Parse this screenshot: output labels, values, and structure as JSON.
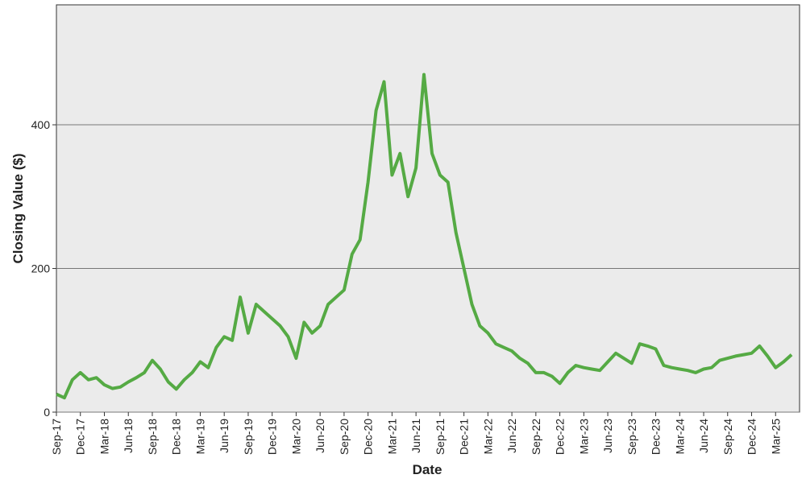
{
  "chart_data": {
    "type": "line",
    "xlabel": "Date",
    "ylabel": "Closing Value ($)",
    "x": [
      "2017-09",
      "2017-10",
      "2017-11",
      "2017-12",
      "2018-01",
      "2018-02",
      "2018-03",
      "2018-04",
      "2018-05",
      "2018-06",
      "2018-07",
      "2018-08",
      "2018-09",
      "2018-10",
      "2018-11",
      "2018-12",
      "2019-01",
      "2019-02",
      "2019-03",
      "2019-04",
      "2019-05",
      "2019-06",
      "2019-07",
      "2019-08",
      "2019-09",
      "2019-10",
      "2019-11",
      "2019-12",
      "2020-01",
      "2020-02",
      "2020-03",
      "2020-04",
      "2020-05",
      "2020-06",
      "2020-07",
      "2020-08",
      "2020-09",
      "2020-10",
      "2020-11",
      "2020-12",
      "2021-01",
      "2021-02",
      "2021-03",
      "2021-04",
      "2021-05",
      "2021-06",
      "2021-07",
      "2021-08",
      "2021-09",
      "2021-10",
      "2021-11",
      "2021-12",
      "2022-01",
      "2022-02",
      "2022-03",
      "2022-04",
      "2022-05",
      "2022-06",
      "2022-07",
      "2022-08",
      "2022-09",
      "2022-10",
      "2022-11",
      "2022-12",
      "2023-01",
      "2023-02",
      "2023-03",
      "2023-04",
      "2023-05",
      "2023-06",
      "2023-07",
      "2023-08",
      "2023-09",
      "2023-10",
      "2023-11",
      "2023-12",
      "2024-01",
      "2024-02",
      "2024-03",
      "2024-04",
      "2024-05",
      "2024-06",
      "2024-07",
      "2024-08",
      "2024-09",
      "2024-10",
      "2024-11",
      "2024-12",
      "2025-01",
      "2025-02",
      "2025-03",
      "2025-04",
      "2025-05"
    ],
    "series": [
      {
        "name": "Closing Value",
        "color": "#55aa44",
        "values": [
          25,
          20,
          45,
          55,
          45,
          48,
          38,
          33,
          35,
          42,
          48,
          55,
          72,
          60,
          42,
          32,
          45,
          55,
          70,
          62,
          90,
          105,
          100,
          160,
          110,
          150,
          140,
          130,
          120,
          105,
          75,
          125,
          110,
          120,
          150,
          160,
          170,
          220,
          240,
          320,
          420,
          460,
          330,
          360,
          300,
          340,
          470,
          360,
          330,
          320,
          250,
          200,
          150,
          120,
          110,
          95,
          90,
          85,
          75,
          68,
          55,
          55,
          50,
          40,
          55,
          65,
          62,
          60,
          58,
          70,
          82,
          75,
          68,
          95,
          92,
          88,
          65,
          62,
          60,
          58,
          55,
          60,
          62,
          72,
          75,
          78,
          80,
          82,
          92,
          78,
          62,
          70,
          80
        ]
      }
    ],
    "xlim": [
      "2017-09",
      "2025-06"
    ],
    "xticks": [
      {
        "value": "2017-09",
        "label": "Sep-17"
      },
      {
        "value": "2017-12",
        "label": "Dec-17"
      },
      {
        "value": "2018-03",
        "label": "Mar-18"
      },
      {
        "value": "2018-06",
        "label": "Jun-18"
      },
      {
        "value": "2018-09",
        "label": "Sep-18"
      },
      {
        "value": "2018-12",
        "label": "Dec-18"
      },
      {
        "value": "2019-03",
        "label": "Mar-19"
      },
      {
        "value": "2019-06",
        "label": "Jun-19"
      },
      {
        "value": "2019-09",
        "label": "Sep-19"
      },
      {
        "value": "2019-12",
        "label": "Dec-19"
      },
      {
        "value": "2020-03",
        "label": "Mar-20"
      },
      {
        "value": "2020-06",
        "label": "Jun-20"
      },
      {
        "value": "2020-09",
        "label": "Sep-20"
      },
      {
        "value": "2020-12",
        "label": "Dec-20"
      },
      {
        "value": "2021-03",
        "label": "Mar-21"
      },
      {
        "value": "2021-06",
        "label": "Jun-21"
      },
      {
        "value": "2021-09",
        "label": "Sep-21"
      },
      {
        "value": "2021-12",
        "label": "Dec-21"
      },
      {
        "value": "2022-03",
        "label": "Mar-22"
      },
      {
        "value": "2022-06",
        "label": "Jun-22"
      },
      {
        "value": "2022-09",
        "label": "Sep-22"
      },
      {
        "value": "2022-12",
        "label": "Dec-22"
      },
      {
        "value": "2023-03",
        "label": "Mar-23"
      },
      {
        "value": "2023-06",
        "label": "Jun-23"
      },
      {
        "value": "2023-09",
        "label": "Sep-23"
      },
      {
        "value": "2023-12",
        "label": "Dec-23"
      },
      {
        "value": "2024-03",
        "label": "Mar-24"
      },
      {
        "value": "2024-06",
        "label": "Jun-24"
      },
      {
        "value": "2024-09",
        "label": "Sep-24"
      },
      {
        "value": "2024-12",
        "label": "Dec-24"
      },
      {
        "value": "2025-03",
        "label": "Mar-25"
      }
    ],
    "ylim": [
      0,
      567
    ],
    "yticks": [
      0,
      200,
      400
    ],
    "grid": true
  }
}
